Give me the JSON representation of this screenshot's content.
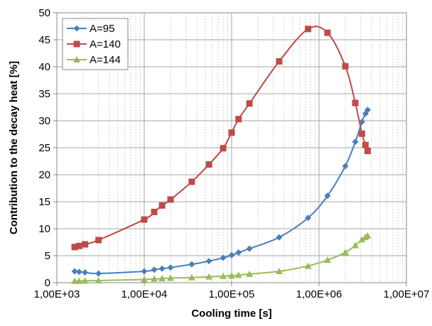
{
  "chart_data": {
    "type": "scatter",
    "xscale": "log",
    "xlabel": "Cooling time [s]",
    "ylabel": "Contribution to the decay heat [%]",
    "xlim": [
      1000,
      10000000
    ],
    "ylim": [
      0,
      50
    ],
    "xticks": [
      {
        "value": 1000,
        "label": "1,00E+03"
      },
      {
        "value": 10000,
        "label": "1,00E+04"
      },
      {
        "value": 100000,
        "label": "1,00E+05"
      },
      {
        "value": 1000000,
        "label": "1,00E+06"
      },
      {
        "value": 10000000,
        "label": "1,00E+07"
      }
    ],
    "yticks": [
      {
        "value": 0,
        "label": "0"
      },
      {
        "value": 5,
        "label": "5"
      },
      {
        "value": 10,
        "label": "10"
      },
      {
        "value": 15,
        "label": "15"
      },
      {
        "value": 20,
        "label": "20"
      },
      {
        "value": 25,
        "label": "25"
      },
      {
        "value": 30,
        "label": "30"
      },
      {
        "value": 35,
        "label": "35"
      },
      {
        "value": 40,
        "label": "40"
      },
      {
        "value": 45,
        "label": "45"
      },
      {
        "value": 50,
        "label": "50"
      }
    ],
    "grid": true,
    "minor_grid_x": true,
    "legend_position": "top-left",
    "series": [
      {
        "name": "A=95",
        "color": "#4a7ebb",
        "marker": "diamond",
        "points": [
          [
            1600,
            2.1
          ],
          [
            1800,
            2.0
          ],
          [
            2100,
            1.9
          ],
          [
            3000,
            1.7
          ],
          [
            10000,
            2.1
          ],
          [
            13000,
            2.4
          ],
          [
            16000,
            2.6
          ],
          [
            20000,
            2.8
          ],
          [
            35000,
            3.4
          ],
          [
            55000,
            4.0
          ],
          [
            80000,
            4.6
          ],
          [
            100000,
            5.1
          ],
          [
            120000,
            5.6
          ],
          [
            160000,
            6.3
          ],
          [
            350000,
            8.4
          ],
          [
            750000,
            12.0
          ],
          [
            1250000,
            16.1
          ],
          [
            2000000,
            21.6
          ],
          [
            2600000,
            26.1
          ],
          [
            3100000,
            29.8
          ],
          [
            3400000,
            31.3
          ],
          [
            3600000,
            32.0
          ]
        ]
      },
      {
        "name": "A=140",
        "color": "#be4b48",
        "marker": "square",
        "points": [
          [
            1600,
            6.6
          ],
          [
            1800,
            6.8
          ],
          [
            2100,
            7.1
          ],
          [
            3000,
            7.9
          ],
          [
            10000,
            11.7
          ],
          [
            13000,
            13.1
          ],
          [
            16000,
            14.3
          ],
          [
            20000,
            15.4
          ],
          [
            35000,
            18.7
          ],
          [
            55000,
            21.9
          ],
          [
            80000,
            24.9
          ],
          [
            100000,
            27.8
          ],
          [
            120000,
            30.3
          ],
          [
            160000,
            33.2
          ],
          [
            350000,
            41.0
          ],
          [
            750000,
            47.0
          ],
          [
            1250000,
            46.3
          ],
          [
            2000000,
            40.1
          ],
          [
            2600000,
            33.3
          ],
          [
            3100000,
            27.6
          ],
          [
            3400000,
            25.5
          ],
          [
            3600000,
            24.4
          ]
        ]
      },
      {
        "name": "A=144",
        "color": "#9bbb59",
        "marker": "triangle",
        "points": [
          [
            1600,
            0.3
          ],
          [
            1800,
            0.3
          ],
          [
            2100,
            0.35
          ],
          [
            3000,
            0.4
          ],
          [
            10000,
            0.6
          ],
          [
            13000,
            0.7
          ],
          [
            16000,
            0.75
          ],
          [
            20000,
            0.85
          ],
          [
            35000,
            0.95
          ],
          [
            55000,
            1.1
          ],
          [
            80000,
            1.2
          ],
          [
            100000,
            1.3
          ],
          [
            120000,
            1.4
          ],
          [
            160000,
            1.6
          ],
          [
            350000,
            2.1
          ],
          [
            750000,
            3.1
          ],
          [
            1250000,
            4.2
          ],
          [
            2000000,
            5.6
          ],
          [
            2600000,
            6.9
          ],
          [
            3100000,
            8.0
          ],
          [
            3400000,
            8.4
          ],
          [
            3600000,
            8.7
          ]
        ]
      }
    ]
  }
}
